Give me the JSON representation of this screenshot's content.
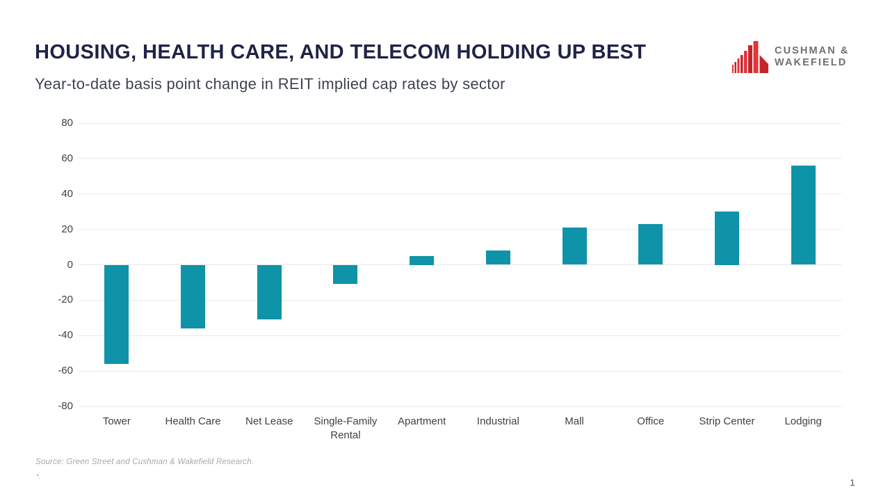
{
  "slide": {
    "title": "HOUSING, HEALTH CARE, AND TELECOM HOLDING UP BEST",
    "subtitle": "Year-to-date basis point change in REIT implied cap rates by sector",
    "source": "Source: Green Street and Cushman & Wakefield Research.",
    "footnote": "*.",
    "page_number": "1"
  },
  "logo": {
    "name": "Cushman & Wakefield",
    "line1": "CUSHMAN &",
    "line2": "WAKEFIELD",
    "brand_red": "#e1343a",
    "brand_red_dark": "#c4242a",
    "text_gray": "#6e6f72"
  },
  "chart_data": {
    "type": "bar",
    "title": "Year-to-date basis point change in REIT implied cap rates by sector",
    "categories": [
      "Tower",
      "Health Care",
      "Net Lease",
      "Single-Family Rental",
      "Apartment",
      "Industrial",
      "Mall",
      "Office",
      "Strip Center",
      "Lodging"
    ],
    "values": [
      -56,
      -36,
      -31,
      -11,
      5,
      8,
      21,
      23,
      30,
      56
    ],
    "ylim": [
      -80,
      80
    ],
    "yticks": [
      80,
      60,
      40,
      20,
      0,
      -20,
      -40,
      -60,
      -80
    ],
    "grid": true,
    "legend": false,
    "bar_color": "#0f93a8",
    "xlabel": "",
    "ylabel": ""
  },
  "colors": {
    "title_navy": "#1e2347",
    "subtitle_gray": "#3d4350",
    "axis_text": "#414141",
    "gridline": "#e7e8e9",
    "source_gray": "#a6a8ab"
  }
}
